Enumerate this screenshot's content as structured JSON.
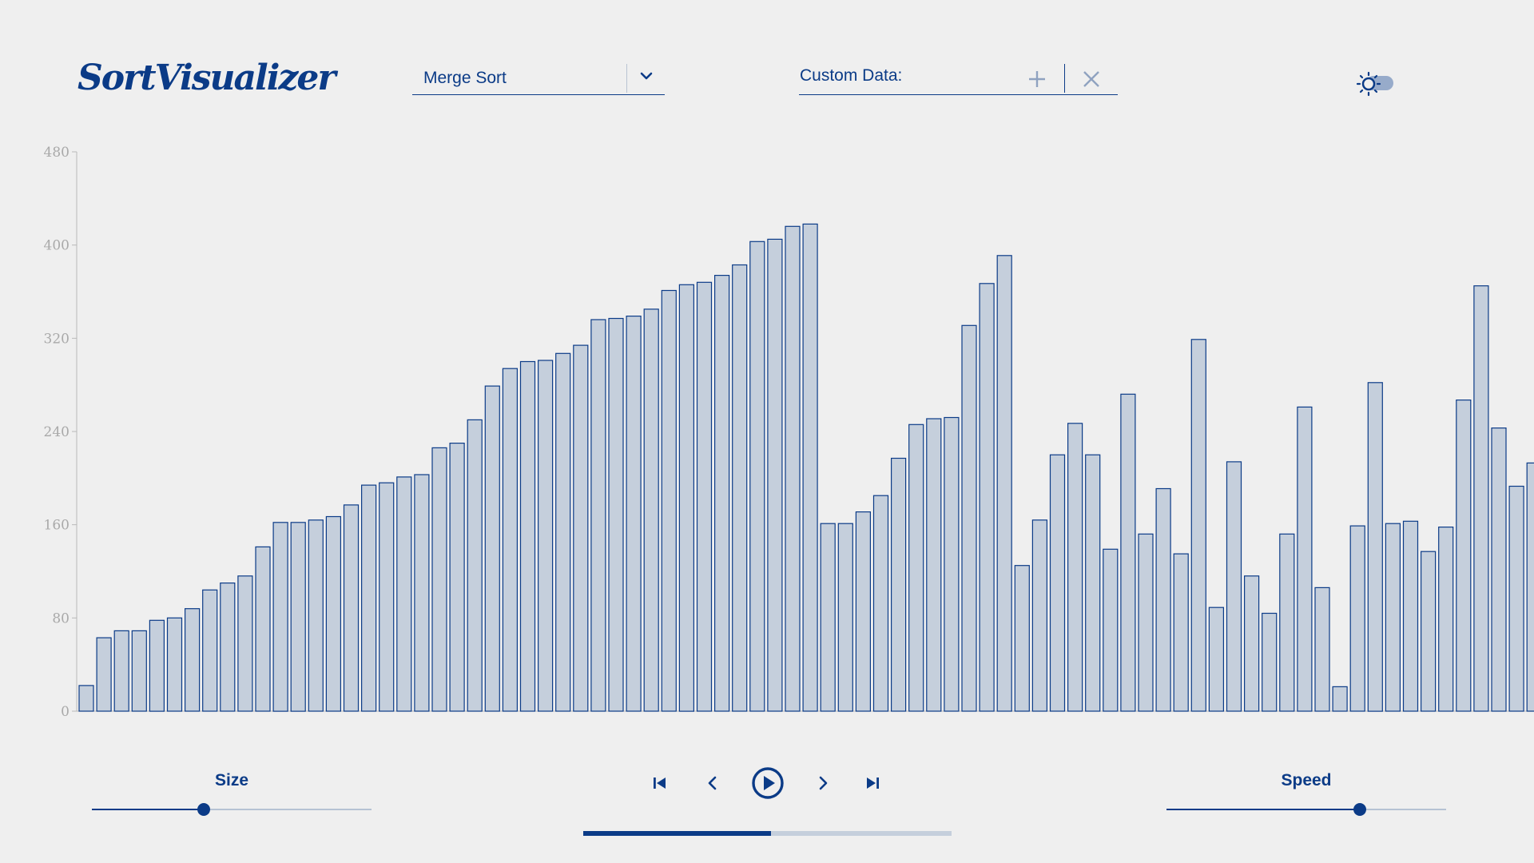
{
  "app": {
    "title": "SortVisualizer"
  },
  "algorithm": {
    "selected": "Merge Sort"
  },
  "custom_data": {
    "label": "Custom Data:"
  },
  "controls": {
    "size_label": "Size",
    "speed_label": "Speed",
    "size_value": 0.4,
    "speed_value": 0.69,
    "progress": 0.51
  },
  "colors": {
    "accent": "#0b3b87",
    "bar_fill": "#c5cfdc",
    "background": "#efefef",
    "axis_text": "#a9a9a9"
  },
  "icons": {
    "dropdown": "chevron-down-icon",
    "add": "plus-icon",
    "clear": "close-icon",
    "theme": "sun-icon",
    "first": "skip-first-icon",
    "prev": "chevron-left-icon",
    "play": "play-circle-icon",
    "next": "chevron-right-icon",
    "last": "skip-last-icon"
  },
  "chart_data": {
    "type": "bar",
    "ylim": [
      0,
      480
    ],
    "yticks": [
      "0",
      "80",
      "160",
      "240",
      "320",
      "400",
      "480"
    ],
    "grid": false,
    "values": [
      22,
      63,
      69,
      69,
      78,
      80,
      88,
      104,
      110,
      116,
      141,
      162,
      162,
      164,
      167,
      177,
      194,
      196,
      201,
      203,
      226,
      230,
      250,
      279,
      294,
      300,
      301,
      307,
      314,
      336,
      337,
      339,
      345,
      361,
      366,
      368,
      374,
      383,
      403,
      405,
      416,
      418,
      161,
      161,
      171,
      185,
      217,
      246,
      251,
      252,
      331,
      367,
      391,
      125,
      164,
      220,
      247,
      220,
      139,
      272,
      152,
      191,
      135,
      319,
      89,
      214,
      116,
      84,
      152,
      261,
      106,
      21,
      159,
      282,
      161,
      163,
      137,
      158,
      267,
      365,
      243,
      193,
      213
    ]
  }
}
